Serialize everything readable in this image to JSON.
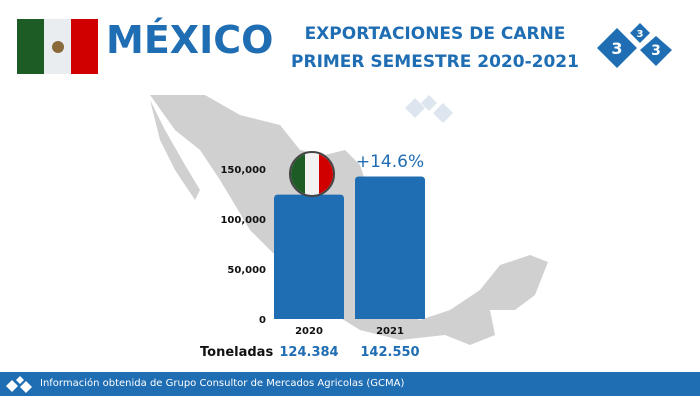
{
  "header": {
    "country": "MÉXICO",
    "line1": "EXPORTACIONES DE CARNE",
    "line2": "PRIMER SEMESTRE  2020-2021",
    "logo_text": "333"
  },
  "colors": {
    "brand": "#1f6db3",
    "flag_green": "#1e5c26",
    "flag_white": "#e9edf0",
    "flag_red": "#d10000",
    "map": "#d0d0d0"
  },
  "chart_data": {
    "type": "bar",
    "categories": [
      "2020",
      "2021"
    ],
    "values": [
      124384,
      142550
    ],
    "ylim": [
      0,
      150000
    ],
    "yticks": [
      "0",
      "50,000",
      "100,000",
      "150,000"
    ],
    "ytick_values": [
      0,
      50000,
      100000,
      150000
    ],
    "annotation": "+14.6%",
    "unit_label": "Toneladas",
    "value_labels": [
      "124.384",
      "142.550"
    ]
  },
  "footer": {
    "text": "Información obtenida de  Grupo Consultor de Mercados Agricolas (GCMA)"
  }
}
